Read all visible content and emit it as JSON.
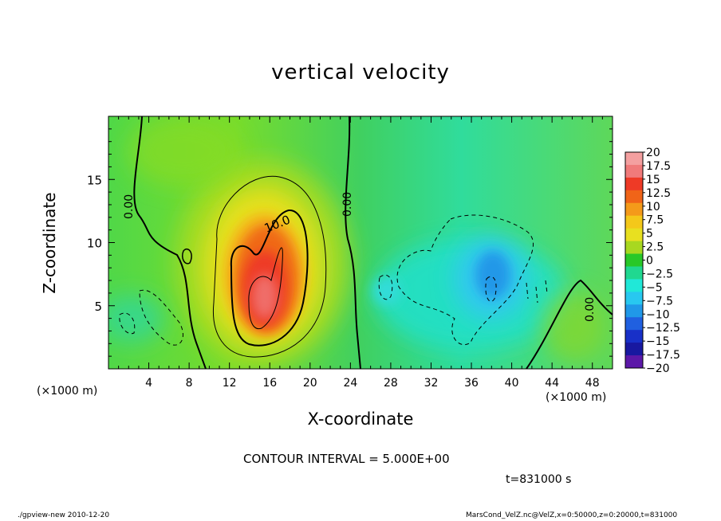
{
  "chart_data": {
    "type": "heatmap",
    "title": "vertical velocity",
    "xlabel": "X-coordinate",
    "ylabel": "Z-coordinate",
    "x_unit_left": "(×1000 m)",
    "x_unit_right": "(×1000 m)",
    "xlim": [
      0,
      50
    ],
    "ylim": [
      0,
      20
    ],
    "x_ticks": [
      4,
      8,
      12,
      16,
      20,
      24,
      28,
      32,
      36,
      40,
      44,
      48
    ],
    "y_ticks": [
      5,
      10,
      15
    ],
    "colorbar": {
      "levels": [
        20,
        17.5,
        15,
        12.5,
        10,
        7.5,
        5,
        2.5,
        0,
        -2.5,
        -5,
        -7.5,
        -10,
        -12.5,
        -15,
        -17.5,
        -20
      ],
      "labels": [
        "20",
        "17.5",
        "15",
        "12.5",
        "10",
        "7.5",
        "5",
        "2.5",
        "0",
        "−2.5",
        "−5",
        "−7.5",
        "−10",
        "−12.5",
        "−15",
        "−17.5",
        "−20"
      ],
      "colors": [
        "#f4a0a0",
        "#f07a7a",
        "#ee3a26",
        "#f06418",
        "#f49a1a",
        "#f4c81a",
        "#e8e020",
        "#a8d820",
        "#28c828",
        "#20d890",
        "#20e8d8",
        "#28c8f0",
        "#2098e8",
        "#2060e0",
        "#1830c8",
        "#1818a0",
        "#5c18a8"
      ]
    },
    "contour_labels": [
      "0.00",
      "0.00",
      "10.0",
      "0.00"
    ],
    "contour_interval": "CONTOUR INTERVAL = 5.000E+00",
    "time": "t=831000 s",
    "features": [
      {
        "kind": "updraft",
        "x": 16,
        "z": 6,
        "peak": 17.5
      },
      {
        "kind": "downdraft",
        "x": 38,
        "z": 7,
        "peak": -10
      }
    ]
  },
  "footer": {
    "left": "./gpview-new 2010-12-20",
    "right": "MarsCond_VelZ.nc@VelZ,x=0:50000,z=0:20000,t=831000"
  }
}
